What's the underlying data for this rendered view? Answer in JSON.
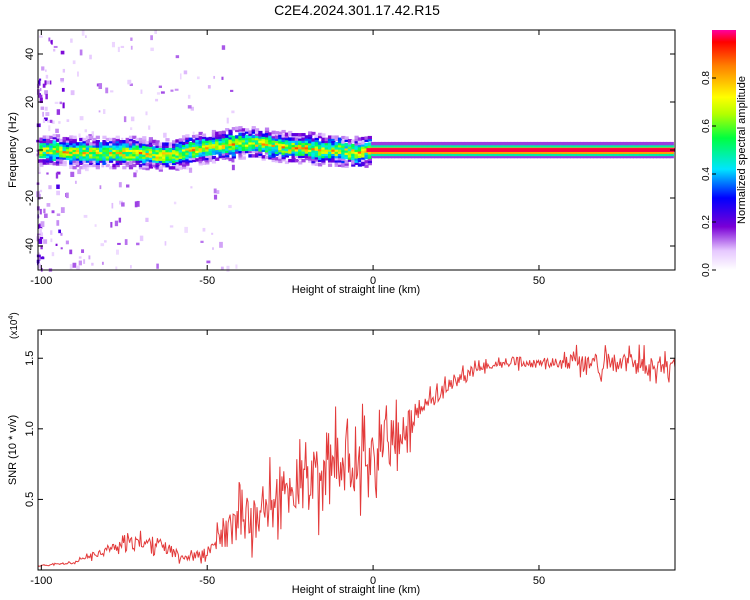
{
  "title": "C2E4.2024.301.17.42.R15",
  "chart_data": [
    {
      "type": "heatmap",
      "xlabel": "Height of straight line (km)",
      "ylabel": "Frequency (Hz)",
      "xlim": [
        -101,
        91
      ],
      "ylim": [
        -50,
        50
      ],
      "xticks": [
        -100,
        -50,
        0,
        50
      ],
      "yticks": [
        -40,
        -20,
        0,
        20,
        40
      ],
      "ridge": {
        "x": [
          -98,
          -90,
          -85,
          -80,
          -75,
          -70,
          -65,
          -60,
          -55,
          -50,
          -45,
          -40,
          -35,
          -30,
          -25,
          -20,
          -15,
          -10,
          -5,
          0,
          10,
          20,
          40,
          60,
          80,
          90
        ],
        "freq": [
          0,
          -1,
          -1,
          -1,
          -1,
          -1,
          -2,
          -2,
          0,
          1,
          2,
          3,
          3,
          2,
          1,
          1,
          0,
          0,
          -1,
          0,
          0,
          0,
          0,
          0,
          0,
          0
        ]
      },
      "colorbar": {
        "label": "Normalized spectral amplitude",
        "ticks": [
          "0.0",
          "0.2",
          "0.4",
          "0.6",
          "0.8"
        ],
        "tick_values": [
          0.0,
          0.2,
          0.4,
          0.6,
          0.8
        ],
        "range": [
          0,
          1
        ]
      }
    },
    {
      "type": "line",
      "xlabel": "Height of straight line (km)",
      "ylabel": "SNR (10 * v/v)",
      "ylabel_multiplier": "(x10",
      "ylabel_exponent": "4",
      "ylabel_multiplier_close": ")",
      "xlim": [
        -101,
        91
      ],
      "ylim": [
        0,
        17000
      ],
      "xticks": [
        -100,
        -50,
        0,
        50
      ],
      "yticks": [
        "0.5",
        "1.0",
        "1.5"
      ],
      "ytick_values": [
        5000,
        10000,
        15000
      ],
      "color": "#e33b3b",
      "series": [
        {
          "x": [
            -101,
            -90,
            -85,
            -80,
            -75,
            -70,
            -65,
            -60,
            -55,
            -50,
            -45,
            -40,
            -35,
            -30,
            -25,
            -20,
            -15,
            -10,
            -5,
            0,
            5,
            10,
            15,
            20,
            25,
            30,
            35,
            40,
            45,
            50,
            55,
            60,
            65,
            70,
            75,
            80,
            85,
            90
          ],
          "values": [
            300,
            500,
            1000,
            1500,
            1800,
            2000,
            1900,
            1200,
            900,
            1200,
            2500,
            3500,
            3500,
            5000,
            5500,
            6000,
            6500,
            7500,
            8200,
            8200,
            9000,
            10000,
            11500,
            12500,
            13500,
            14100,
            14500,
            14600,
            14600,
            14600,
            14700,
            14700,
            14700,
            14700,
            14600,
            14600,
            14500,
            14500
          ],
          "noise": [
            100,
            150,
            400,
            600,
            800,
            900,
            900,
            700,
            600,
            800,
            2000,
            3000,
            3000,
            3500,
            4000,
            4500,
            4500,
            4500,
            4500,
            4000,
            3500,
            2500,
            1500,
            1000,
            900,
            700,
            600,
            500,
            500,
            600,
            700,
            1200,
            1400,
            1400,
            1400,
            1400,
            1400,
            1200
          ]
        }
      ]
    }
  ]
}
